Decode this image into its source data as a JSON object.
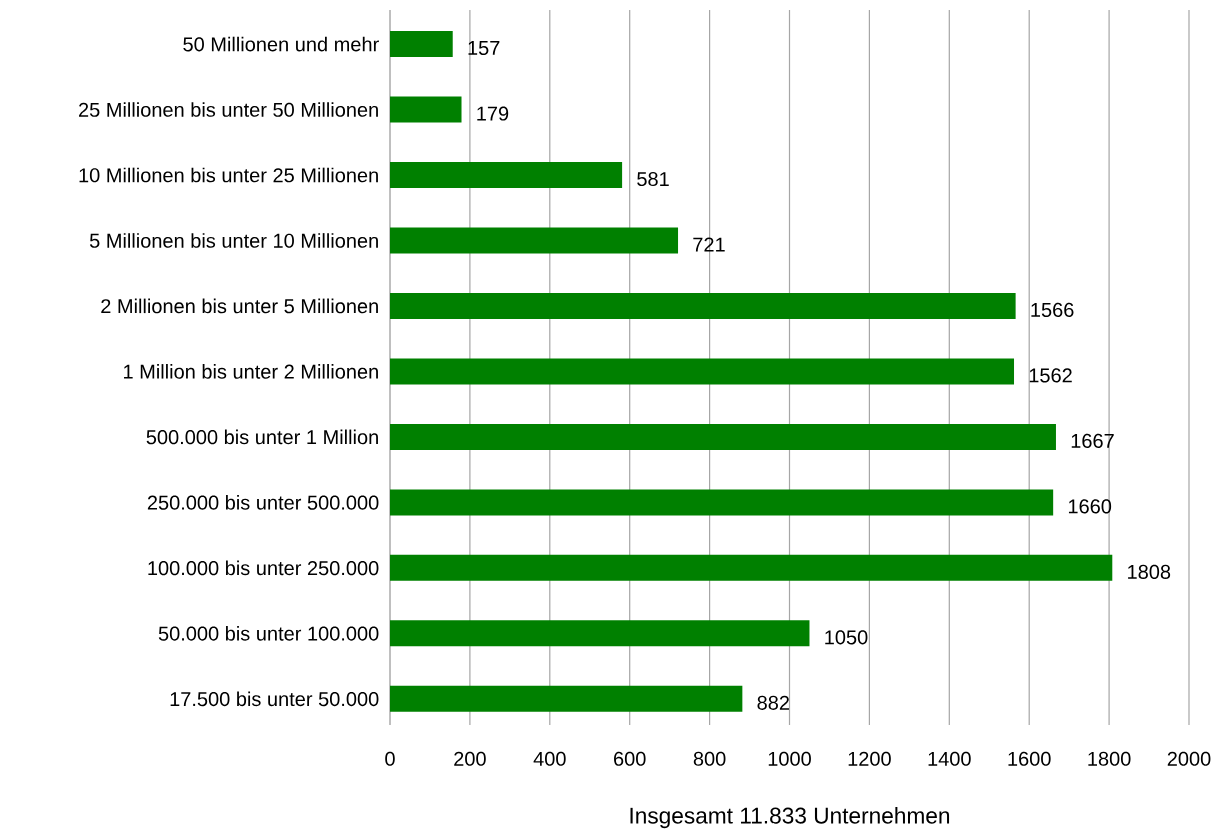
{
  "chart_data": {
    "type": "bar",
    "orientation": "horizontal",
    "xlabel": "Insgesamt 11.833 Unternehmen",
    "categories": [
      "50 Millionen und mehr",
      "25 Millionen bis unter 50 Millionen",
      "10 Millionen bis unter 25 Millionen",
      "5 Millionen bis unter 10 Millionen",
      "2 Millionen bis unter 5 Millionen",
      "1 Million bis unter 2 Millionen",
      "500.000 bis unter 1 Million",
      "250.000 bis unter 500.000",
      "100.000 bis unter 250.000",
      "50.000 bis unter 100.000",
      "17.500 bis unter 50.000"
    ],
    "values": [
      157,
      179,
      581,
      721,
      1566,
      1562,
      1667,
      1660,
      1808,
      1050,
      882
    ],
    "color": "#008000",
    "xlim": [
      0,
      2000
    ],
    "xticks": [
      0,
      200,
      400,
      600,
      800,
      1000,
      1200,
      1400,
      1600,
      1800,
      2000
    ],
    "grid": "x",
    "data_labels": true
  }
}
